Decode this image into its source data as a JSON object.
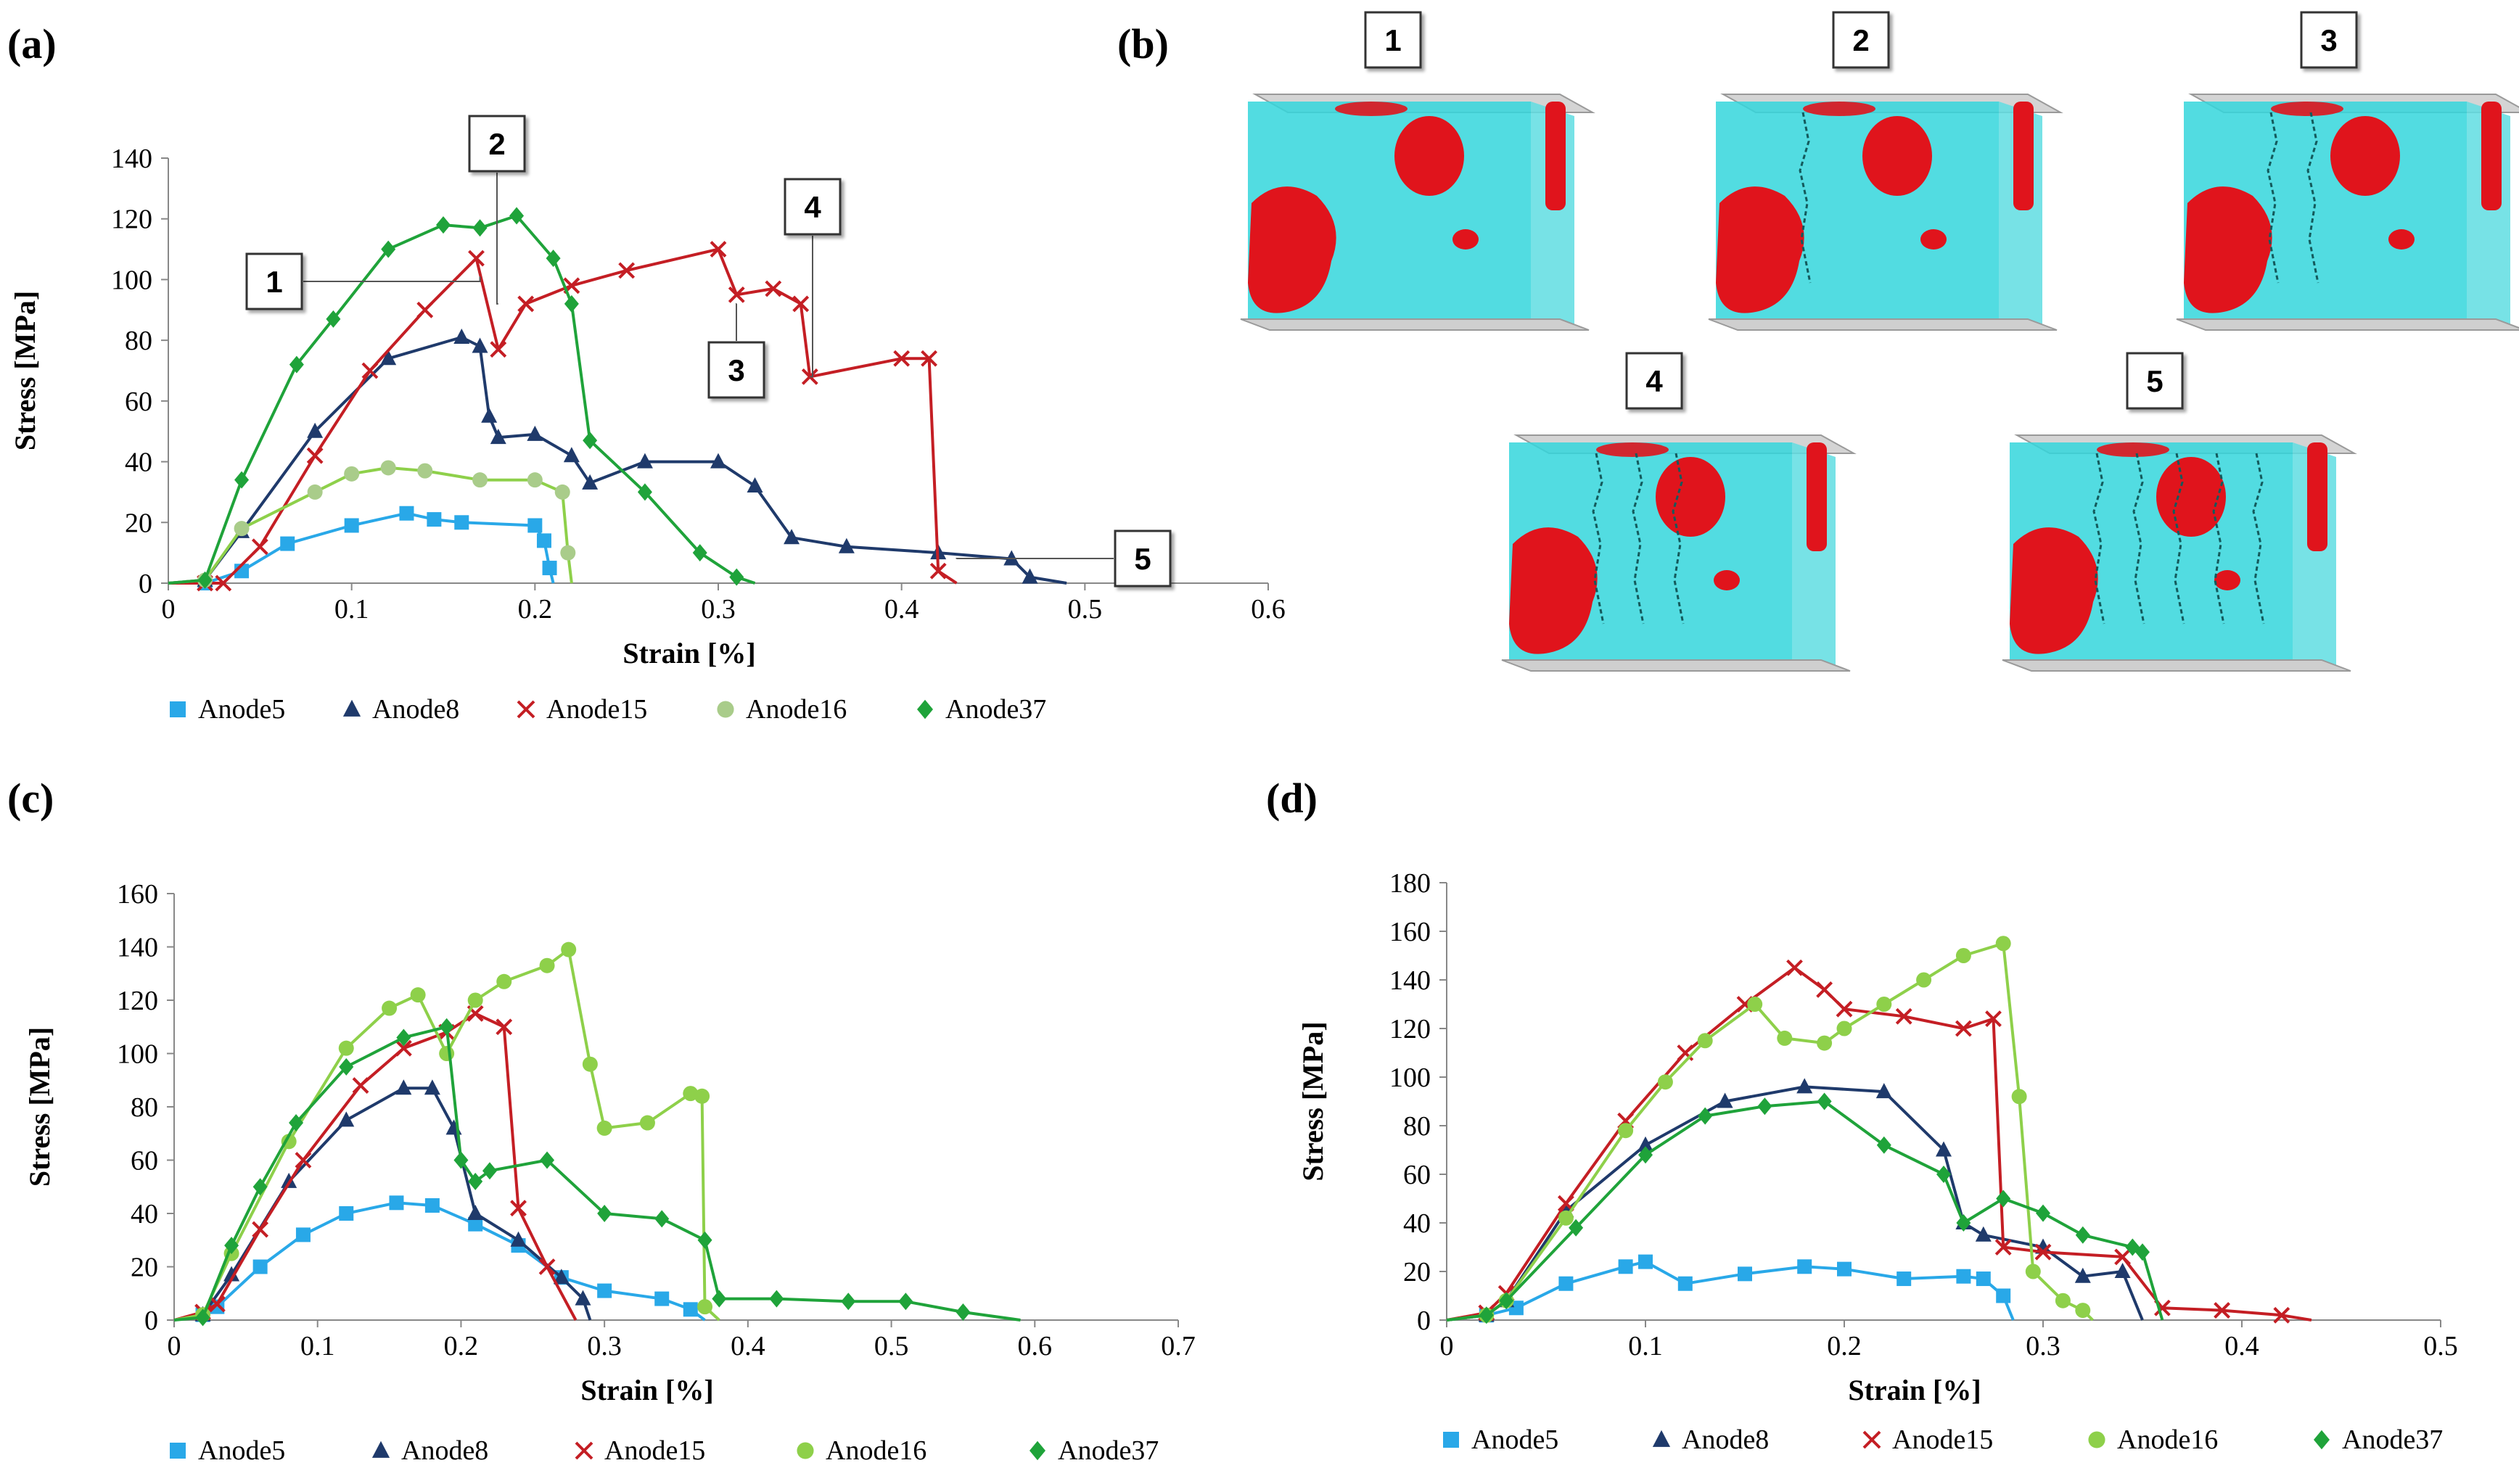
{
  "colors": {
    "Anode5": "#29a8e8",
    "Anode8": "#1f3a6b",
    "Anode15": "#c41e24",
    "Anode16": "#8ed04a",
    "Anode37": "#1fa33a",
    "Anode16_a_marker": "#a9cc8a",
    "cube_cyan": "#34d6dc",
    "cube_red": "#e0141c"
  },
  "legend": {
    "series": [
      "Anode5",
      "Anode8",
      "Anode15",
      "Anode16",
      "Anode37"
    ],
    "markers": [
      "square",
      "triangle",
      "cross",
      "circle",
      "diamond"
    ]
  },
  "panels": {
    "a": "(a)",
    "b": "(b)",
    "c": "(c)",
    "d": "(d)"
  },
  "panel_b": {
    "snapshots": [
      "1",
      "2",
      "3",
      "4",
      "5"
    ]
  },
  "chart_data": [
    {
      "id": "a",
      "type": "line",
      "title": "",
      "xlabel": "Strain [%]",
      "ylabel": "Stress [MPa]",
      "xlim": [
        0,
        0.6
      ],
      "ylim": [
        0,
        140
      ],
      "xticks": [
        "0",
        "0.1",
        "0.2",
        "0.3",
        "0.4",
        "0.5",
        "0.6"
      ],
      "yticks": [
        "0",
        "20",
        "40",
        "60",
        "80",
        "100",
        "120",
        "140"
      ],
      "grid": false,
      "legend": "bottom",
      "annotations": [
        {
          "label": "1",
          "x": 0.17,
          "y": 101
        },
        {
          "label": "2",
          "x": 0.18,
          "y": 92
        },
        {
          "label": "3",
          "x": 0.31,
          "y": 92
        },
        {
          "label": "4",
          "x": 0.35,
          "y": 68
        },
        {
          "label": "5",
          "x": 0.43,
          "y": 8
        }
      ],
      "series": [
        {
          "name": "Anode5",
          "x": [
            0,
            0.02,
            0.04,
            0.065,
            0.1,
            0.13,
            0.145,
            0.16,
            0.2,
            0.205,
            0.208,
            0.21
          ],
          "y": [
            0,
            0,
            4,
            13,
            19,
            23,
            21,
            20,
            19,
            14,
            5,
            0
          ]
        },
        {
          "name": "Anode8",
          "x": [
            0,
            0.02,
            0.04,
            0.08,
            0.12,
            0.16,
            0.17,
            0.175,
            0.18,
            0.2,
            0.22,
            0.23,
            0.26,
            0.3,
            0.32,
            0.34,
            0.37,
            0.42,
            0.46,
            0.47,
            0.49
          ],
          "y": [
            0,
            1,
            17,
            50,
            74,
            81,
            78,
            55,
            48,
            49,
            42,
            33,
            40,
            40,
            32,
            15,
            12,
            10,
            8,
            2,
            0
          ]
        },
        {
          "name": "Anode15",
          "x": [
            0,
            0.02,
            0.03,
            0.05,
            0.08,
            0.11,
            0.14,
            0.168,
            0.18,
            0.195,
            0.22,
            0.25,
            0.3,
            0.31,
            0.33,
            0.345,
            0.35,
            0.4,
            0.415,
            0.42,
            0.43
          ],
          "y": [
            0,
            0,
            0,
            12,
            42,
            70,
            90,
            107,
            77,
            92,
            98,
            103,
            110,
            95,
            97,
            92,
            68,
            74,
            74,
            4,
            0
          ]
        },
        {
          "name": "Anode16",
          "x": [
            0,
            0.02,
            0.04,
            0.08,
            0.1,
            0.12,
            0.14,
            0.17,
            0.2,
            0.215,
            0.218,
            0.22
          ],
          "y": [
            0,
            1,
            18,
            30,
            36,
            38,
            37,
            34,
            34,
            30,
            10,
            0
          ]
        },
        {
          "name": "Anode37",
          "x": [
            0,
            0.02,
            0.04,
            0.07,
            0.09,
            0.12,
            0.15,
            0.17,
            0.19,
            0.21,
            0.22,
            0.23,
            0.26,
            0.29,
            0.31,
            0.32
          ],
          "y": [
            0,
            1,
            34,
            72,
            87,
            110,
            118,
            117,
            121,
            107,
            92,
            47,
            30,
            10,
            2,
            0
          ]
        }
      ]
    },
    {
      "id": "c",
      "type": "line",
      "title": "",
      "xlabel": "Strain [%]",
      "ylabel": "Stress [MPa]",
      "xlim": [
        0,
        0.7
      ],
      "ylim": [
        0,
        160
      ],
      "xticks": [
        "0",
        "0.1",
        "0.2",
        "0.3",
        "0.4",
        "0.5",
        "0.6",
        "0.7"
      ],
      "yticks": [
        "0",
        "20",
        "40",
        "60",
        "80",
        "100",
        "120",
        "140",
        "160"
      ],
      "grid": false,
      "legend": "bottom",
      "series": [
        {
          "name": "Anode5",
          "x": [
            0,
            0.02,
            0.03,
            0.06,
            0.09,
            0.12,
            0.155,
            0.18,
            0.21,
            0.24,
            0.27,
            0.3,
            0.34,
            0.36,
            0.37
          ],
          "y": [
            0,
            2,
            5,
            20,
            32,
            40,
            44,
            43,
            36,
            28,
            16,
            11,
            8,
            4,
            0
          ]
        },
        {
          "name": "Anode8",
          "x": [
            0,
            0.02,
            0.04,
            0.08,
            0.12,
            0.16,
            0.18,
            0.195,
            0.21,
            0.24,
            0.27,
            0.285,
            0.29
          ],
          "y": [
            0,
            2,
            17,
            52,
            75,
            87,
            87,
            72,
            40,
            30,
            16,
            8,
            0
          ]
        },
        {
          "name": "Anode15",
          "x": [
            0,
            0.02,
            0.03,
            0.06,
            0.09,
            0.13,
            0.16,
            0.19,
            0.21,
            0.23,
            0.24,
            0.26,
            0.28
          ],
          "y": [
            0,
            3,
            6,
            34,
            60,
            88,
            102,
            108,
            115,
            110,
            42,
            20,
            0
          ]
        },
        {
          "name": "Anode16",
          "x": [
            0,
            0.02,
            0.04,
            0.08,
            0.12,
            0.15,
            0.17,
            0.19,
            0.21,
            0.23,
            0.26,
            0.275,
            0.29,
            0.3,
            0.33,
            0.36,
            0.368,
            0.37,
            0.38
          ],
          "y": [
            0,
            2,
            25,
            67,
            102,
            117,
            122,
            100,
            120,
            127,
            133,
            139,
            96,
            72,
            74,
            85,
            84,
            5,
            0
          ]
        },
        {
          "name": "Anode37",
          "x": [
            0,
            0.02,
            0.04,
            0.06,
            0.085,
            0.12,
            0.16,
            0.19,
            0.2,
            0.21,
            0.22,
            0.26,
            0.3,
            0.34,
            0.37,
            0.38,
            0.42,
            0.47,
            0.51,
            0.55,
            0.59
          ],
          "y": [
            0,
            1,
            28,
            50,
            74,
            95,
            106,
            110,
            60,
            52,
            56,
            60,
            40,
            38,
            30,
            8,
            8,
            7,
            7,
            3,
            0
          ]
        }
      ]
    },
    {
      "id": "d",
      "type": "line",
      "title": "",
      "xlabel": "Strain [%]",
      "ylabel": "Stress [MPa]",
      "xlim": [
        0,
        0.5
      ],
      "ylim": [
        0,
        180
      ],
      "xticks": [
        "0",
        "0.1",
        "0.2",
        "0.3",
        "0.4",
        "0.5"
      ],
      "yticks": [
        "0",
        "20",
        "40",
        "60",
        "80",
        "100",
        "120",
        "140",
        "160",
        "180"
      ],
      "grid": false,
      "legend": "bottom",
      "series": [
        {
          "name": "Anode5",
          "x": [
            0,
            0.02,
            0.035,
            0.06,
            0.09,
            0.1,
            0.12,
            0.15,
            0.18,
            0.2,
            0.23,
            0.26,
            0.27,
            0.28,
            0.285
          ],
          "y": [
            0,
            2,
            5,
            15,
            22,
            24,
            15,
            19,
            22,
            21,
            17,
            18,
            17,
            10,
            0
          ]
        },
        {
          "name": "Anode8",
          "x": [
            0,
            0.02,
            0.03,
            0.06,
            0.1,
            0.14,
            0.18,
            0.22,
            0.25,
            0.26,
            0.27,
            0.3,
            0.32,
            0.34,
            0.35
          ],
          "y": [
            0,
            2,
            8,
            45,
            72,
            90,
            96,
            94,
            70,
            40,
            35,
            30,
            18,
            20,
            0
          ]
        },
        {
          "name": "Anode15",
          "x": [
            0,
            0.02,
            0.03,
            0.06,
            0.09,
            0.12,
            0.15,
            0.175,
            0.19,
            0.2,
            0.23,
            0.26,
            0.275,
            0.28,
            0.3,
            0.34,
            0.36,
            0.39,
            0.42,
            0.435
          ],
          "y": [
            0,
            3,
            11,
            48,
            82,
            110,
            130,
            145,
            136,
            128,
            125,
            120,
            124,
            30,
            28,
            26,
            5,
            4,
            2,
            0
          ]
        },
        {
          "name": "Anode16",
          "x": [
            0,
            0.02,
            0.03,
            0.06,
            0.09,
            0.11,
            0.13,
            0.155,
            0.17,
            0.19,
            0.2,
            0.22,
            0.24,
            0.26,
            0.28,
            0.288,
            0.295,
            0.31,
            0.32,
            0.325
          ],
          "y": [
            0,
            2,
            8,
            42,
            78,
            98,
            115,
            130,
            116,
            114,
            120,
            130,
            140,
            150,
            155,
            92,
            20,
            8,
            4,
            0
          ]
        },
        {
          "name": "Anode37",
          "x": [
            0,
            0.02,
            0.03,
            0.065,
            0.1,
            0.13,
            0.16,
            0.19,
            0.22,
            0.25,
            0.26,
            0.28,
            0.3,
            0.32,
            0.345,
            0.35,
            0.36
          ],
          "y": [
            0,
            2,
            8,
            38,
            68,
            84,
            88,
            90,
            72,
            60,
            40,
            50,
            44,
            35,
            30,
            28,
            0
          ]
        }
      ]
    }
  ]
}
